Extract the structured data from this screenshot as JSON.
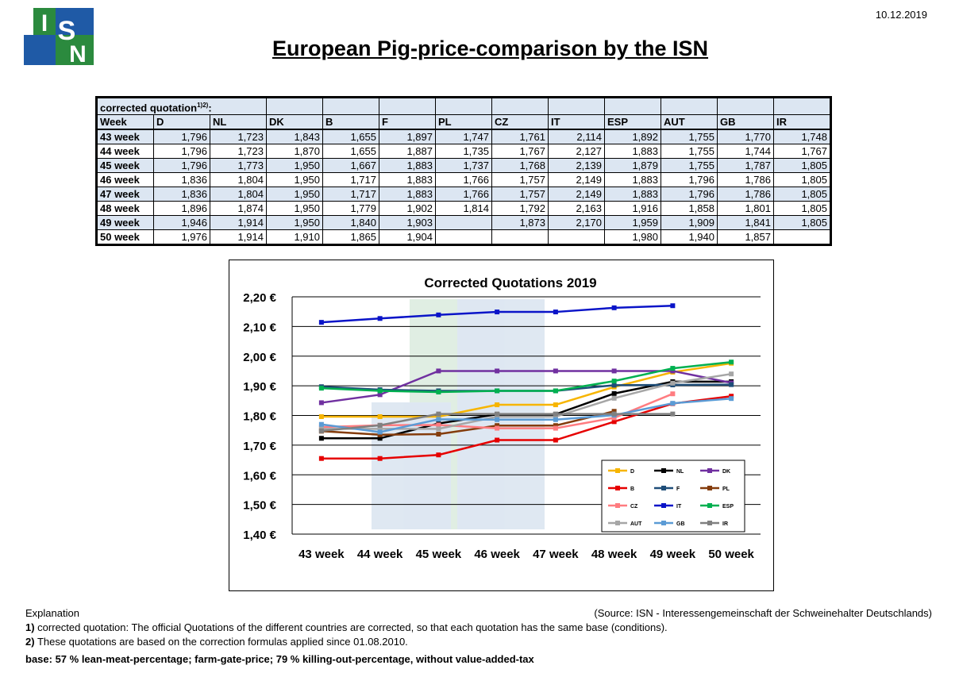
{
  "date": "10.12.2019",
  "logo": [
    "I",
    "S",
    "N"
  ],
  "title": "European Pig-price-comparison by the ISN",
  "table": {
    "caption": "corrected quotation",
    "caption_sup": "1)2)",
    "caption_end": ":",
    "header": [
      "Week",
      "D",
      "NL",
      "DK",
      "B",
      "F",
      "PL",
      "CZ",
      "IT",
      "ESP",
      "AUT",
      "GB",
      "IR"
    ],
    "rows": [
      [
        "43 week",
        "1,796",
        "1,723",
        "1,843",
        "1,655",
        "1,897",
        "1,747",
        "1,761",
        "2,114",
        "1,892",
        "1,755",
        "1,770",
        "1,748"
      ],
      [
        "44 week",
        "1,796",
        "1,723",
        "1,870",
        "1,655",
        "1,887",
        "1,735",
        "1,767",
        "2,127",
        "1,883",
        "1,755",
        "1,744",
        "1,767"
      ],
      [
        "45 week",
        "1,796",
        "1,773",
        "1,950",
        "1,667",
        "1,883",
        "1,737",
        "1,768",
        "2,139",
        "1,879",
        "1,755",
        "1,787",
        "1,805"
      ],
      [
        "46 week",
        "1,836",
        "1,804",
        "1,950",
        "1,717",
        "1,883",
        "1,766",
        "1,757",
        "2,149",
        "1,883",
        "1,796",
        "1,786",
        "1,805"
      ],
      [
        "47 week",
        "1,836",
        "1,804",
        "1,950",
        "1,717",
        "1,883",
        "1,766",
        "1,757",
        "2,149",
        "1,883",
        "1,796",
        "1,786",
        "1,805"
      ],
      [
        "48 week",
        "1,896",
        "1,874",
        "1,950",
        "1,779",
        "1,902",
        "1,814",
        "1,792",
        "2,163",
        "1,916",
        "1,858",
        "1,801",
        "1,805"
      ],
      [
        "49 week",
        "1,946",
        "1,914",
        "1,950",
        "1,840",
        "1,903",
        null,
        "1,873",
        "2,170",
        "1,959",
        "1,909",
        "1,841",
        "1,805"
      ],
      [
        "50 week",
        "1,976",
        "1,914",
        "1,910",
        "1,865",
        "1,904",
        null,
        null,
        null,
        "1,980",
        "1,940",
        "1,857",
        null
      ]
    ]
  },
  "chart_data": {
    "type": "line",
    "title": "Corrected Quotations 2019",
    "categories": [
      "43 week",
      "44 week",
      "45 week",
      "46 week",
      "47 week",
      "48 week",
      "49 week",
      "50 week"
    ],
    "ylim": [
      1.4,
      2.2
    ],
    "yticks": [
      {
        "value": 1.4,
        "label": "1,40 €"
      },
      {
        "value": 1.5,
        "label": "1,50 €"
      },
      {
        "value": 1.6,
        "label": "1,60 €"
      },
      {
        "value": 1.7,
        "label": "1,70 €"
      },
      {
        "value": 1.8,
        "label": "1,80 €"
      },
      {
        "value": 1.9,
        "label": "1,90 €"
      },
      {
        "value": 2.0,
        "label": "2,00 €"
      },
      {
        "value": 2.1,
        "label": "2,10 €"
      },
      {
        "value": 2.2,
        "label": "2,20 €"
      }
    ],
    "grid": true,
    "legend": "lower right",
    "series": [
      {
        "name": "D",
        "color": "#f7b500",
        "values": [
          1.796,
          1.796,
          1.796,
          1.836,
          1.836,
          1.896,
          1.946,
          1.976
        ]
      },
      {
        "name": "NL",
        "color": "#000000",
        "values": [
          1.723,
          1.723,
          1.773,
          1.804,
          1.804,
          1.874,
          1.914,
          1.914
        ]
      },
      {
        "name": "DK",
        "color": "#7030a0",
        "values": [
          1.843,
          1.87,
          1.95,
          1.95,
          1.95,
          1.95,
          1.95,
          1.91
        ]
      },
      {
        "name": "B",
        "color": "#e60000",
        "values": [
          1.655,
          1.655,
          1.667,
          1.717,
          1.717,
          1.779,
          1.84,
          1.865
        ]
      },
      {
        "name": "F",
        "color": "#1f4e79",
        "values": [
          1.897,
          1.887,
          1.883,
          1.883,
          1.883,
          1.902,
          1.903,
          1.904
        ]
      },
      {
        "name": "PL",
        "color": "#843c0c",
        "values": [
          1.747,
          1.735,
          1.737,
          1.766,
          1.766,
          1.814,
          null,
          null
        ]
      },
      {
        "name": "CZ",
        "color": "#ff7c80",
        "values": [
          1.761,
          1.767,
          1.768,
          1.757,
          1.757,
          1.792,
          1.873,
          null
        ]
      },
      {
        "name": "IT",
        "color": "#0a14c8",
        "values": [
          2.114,
          2.127,
          2.139,
          2.149,
          2.149,
          2.163,
          2.17,
          null
        ]
      },
      {
        "name": "ESP",
        "color": "#00b050",
        "values": [
          1.892,
          1.883,
          1.879,
          1.883,
          1.883,
          1.916,
          1.959,
          1.98
        ]
      },
      {
        "name": "AUT",
        "color": "#a6a6a6",
        "values": [
          1.755,
          1.755,
          1.755,
          1.796,
          1.796,
          1.858,
          1.909,
          1.94
        ]
      },
      {
        "name": "GB",
        "color": "#5b9bd5",
        "values": [
          1.77,
          1.744,
          1.787,
          1.786,
          1.786,
          1.801,
          1.841,
          1.857
        ]
      },
      {
        "name": "IR",
        "color": "#808080",
        "values": [
          1.748,
          1.767,
          1.805,
          1.805,
          1.805,
          1.805,
          1.805,
          null
        ]
      }
    ]
  },
  "footer": {
    "explanation": "Explanation",
    "source": "(Source: ISN - Interessengemeinschaft der Schweinehalter Deutschlands)",
    "notes": [
      {
        "marker": "1)",
        "text": " corrected quotation: The official Quotations of the different countries are corrected, so that each quotation has the same base (conditions)."
      },
      {
        "marker": "2)",
        "text": " These quotations are based on the correction formulas applied since 01.08.2010."
      }
    ],
    "base": "base: 57 % lean-meat-percentage; farm-gate-price; 79 % killing-out-percentage, without value-added-tax"
  }
}
